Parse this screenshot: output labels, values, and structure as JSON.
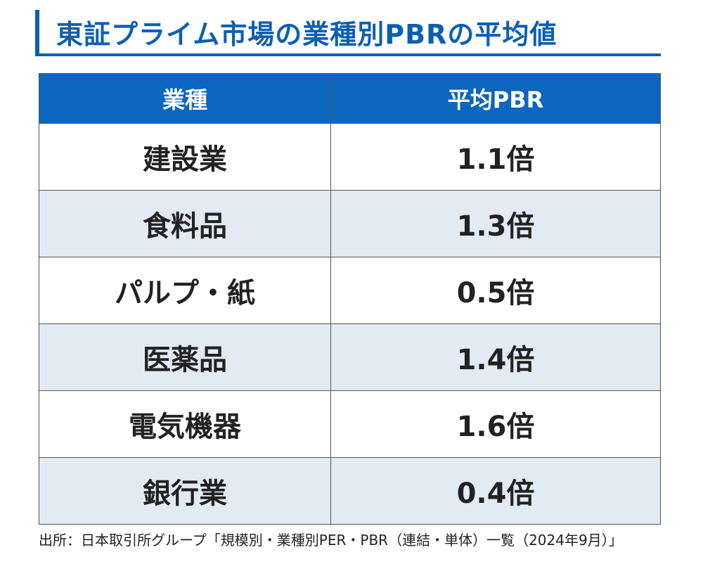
{
  "title": "東証プライム市場の業種別PBRの平均値",
  "chart_data": {
    "type": "table",
    "columns": [
      "業種",
      "平均PBR"
    ],
    "rows": [
      {
        "sector": "建設業",
        "pbr": "1.1倍",
        "value": 1.1
      },
      {
        "sector": "食料品",
        "pbr": "1.3倍",
        "value": 1.3
      },
      {
        "sector": "パルプ・紙",
        "pbr": "0.5倍",
        "value": 0.5
      },
      {
        "sector": "医薬品",
        "pbr": "1.4倍",
        "value": 1.4
      },
      {
        "sector": "電気機器",
        "pbr": "1.6倍",
        "value": 1.6
      },
      {
        "sector": "銀行業",
        "pbr": "0.4倍",
        "value": 0.4
      }
    ]
  },
  "source": "出所：日本取引所グループ「規模別・業種別PER・PBR（連結・単体）一覧（2024年9月）」",
  "colors": {
    "accent": "#0b5fb3",
    "header_bg": "#0b66bd",
    "alt_row_bg": "#e2ebf3"
  }
}
